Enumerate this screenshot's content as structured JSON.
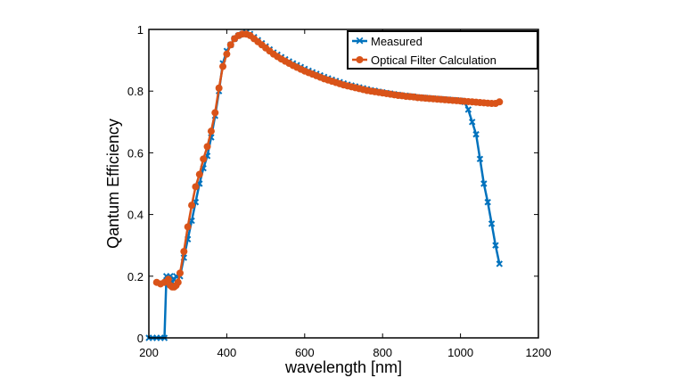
{
  "chart_data": {
    "type": "line",
    "title": "",
    "xlabel": "wavelength [nm]",
    "ylabel": "Qantum Efficiency",
    "xlim": [
      200,
      1200
    ],
    "ylim": [
      0,
      1
    ],
    "xticks": [
      200,
      400,
      600,
      800,
      1000,
      1200
    ],
    "yticks": [
      0,
      0.2,
      0.4,
      0.6,
      0.8,
      1
    ],
    "xtick_labels": [
      "200",
      "400",
      "600",
      "800",
      "1000",
      "1200"
    ],
    "ytick_labels": [
      "0",
      "0.2",
      "0.4",
      "0.6",
      "0.8",
      "1"
    ],
    "grid": false,
    "legend_position": "top-right",
    "series": [
      {
        "name": "Measured",
        "color": "#0072BD",
        "marker": "x",
        "x": [
          200,
          210,
          220,
          230,
          240,
          245,
          250,
          255,
          260,
          265,
          270,
          280,
          290,
          300,
          310,
          320,
          330,
          340,
          350,
          360,
          370,
          380,
          390,
          400,
          410,
          420,
          430,
          440,
          450,
          460,
          470,
          480,
          490,
          500,
          510,
          520,
          530,
          540,
          550,
          560,
          570,
          580,
          590,
          600,
          610,
          620,
          630,
          640,
          650,
          660,
          670,
          680,
          690,
          700,
          710,
          720,
          730,
          740,
          750,
          760,
          770,
          780,
          790,
          800,
          810,
          820,
          830,
          840,
          850,
          860,
          870,
          880,
          890,
          900,
          910,
          920,
          930,
          940,
          950,
          960,
          970,
          980,
          990,
          1000,
          1010,
          1020,
          1030,
          1040,
          1050,
          1060,
          1070,
          1080,
          1090,
          1100
        ],
        "y": [
          0.0,
          0.0,
          0.0,
          0.0,
          0.0,
          0.2,
          0.19,
          0.2,
          0.18,
          0.19,
          0.2,
          0.2,
          0.26,
          0.32,
          0.38,
          0.44,
          0.5,
          0.55,
          0.59,
          0.65,
          0.72,
          0.8,
          0.89,
          0.93,
          0.95,
          0.97,
          0.98,
          0.985,
          0.99,
          0.985,
          0.975,
          0.965,
          0.955,
          0.945,
          0.935,
          0.925,
          0.918,
          0.91,
          0.903,
          0.896,
          0.89,
          0.884,
          0.878,
          0.872,
          0.866,
          0.861,
          0.856,
          0.851,
          0.846,
          0.841,
          0.837,
          0.833,
          0.829,
          0.825,
          0.821,
          0.818,
          0.815,
          0.812,
          0.809,
          0.806,
          0.803,
          0.801,
          0.798,
          0.796,
          0.794,
          0.792,
          0.79,
          0.788,
          0.786,
          0.785,
          0.783,
          0.782,
          0.78,
          0.779,
          0.778,
          0.777,
          0.776,
          0.775,
          0.774,
          0.773,
          0.772,
          0.771,
          0.77,
          0.769,
          0.765,
          0.74,
          0.7,
          0.66,
          0.58,
          0.5,
          0.44,
          0.37,
          0.3,
          0.24
        ]
      },
      {
        "name": "Optical Filter Calculation",
        "color": "#D95319",
        "marker": "o",
        "x": [
          220,
          230,
          240,
          250,
          255,
          260,
          265,
          270,
          275,
          280,
          290,
          300,
          310,
          320,
          330,
          340,
          350,
          360,
          370,
          380,
          390,
          400,
          410,
          420,
          430,
          440,
          450,
          460,
          470,
          480,
          490,
          500,
          510,
          520,
          530,
          540,
          550,
          560,
          570,
          580,
          590,
          600,
          610,
          620,
          630,
          640,
          650,
          660,
          670,
          680,
          690,
          700,
          710,
          720,
          730,
          740,
          750,
          760,
          770,
          780,
          790,
          800,
          810,
          820,
          830,
          840,
          850,
          860,
          870,
          880,
          890,
          900,
          910,
          920,
          930,
          940,
          950,
          960,
          970,
          980,
          990,
          1000,
          1010,
          1020,
          1030,
          1040,
          1050,
          1060,
          1070,
          1080,
          1090,
          1100
        ],
        "y": [
          0.18,
          0.175,
          0.18,
          0.19,
          0.17,
          0.165,
          0.165,
          0.17,
          0.18,
          0.21,
          0.28,
          0.36,
          0.43,
          0.49,
          0.53,
          0.58,
          0.62,
          0.67,
          0.73,
          0.81,
          0.88,
          0.92,
          0.95,
          0.97,
          0.98,
          0.985,
          0.985,
          0.98,
          0.97,
          0.96,
          0.95,
          0.94,
          0.93,
          0.92,
          0.912,
          0.904,
          0.897,
          0.89,
          0.883,
          0.877,
          0.871,
          0.865,
          0.86,
          0.855,
          0.85,
          0.845,
          0.84,
          0.836,
          0.832,
          0.828,
          0.824,
          0.82,
          0.817,
          0.814,
          0.811,
          0.808,
          0.805,
          0.802,
          0.8,
          0.798,
          0.796,
          0.794,
          0.792,
          0.79,
          0.788,
          0.786,
          0.785,
          0.783,
          0.782,
          0.781,
          0.779,
          0.778,
          0.777,
          0.776,
          0.775,
          0.774,
          0.773,
          0.772,
          0.771,
          0.77,
          0.769,
          0.768,
          0.767,
          0.766,
          0.765,
          0.764,
          0.763,
          0.762,
          0.761,
          0.76,
          0.76,
          0.765
        ]
      }
    ]
  }
}
